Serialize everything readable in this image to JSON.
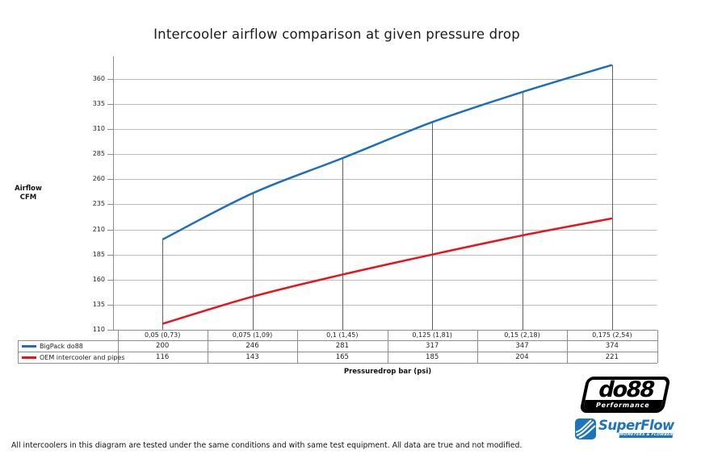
{
  "title": "Intercooler airflow comparison at given pressure drop",
  "chart_data": {
    "type": "line",
    "title": "Intercooler airflow comparison at given pressure drop",
    "xlabel": "Pressuredrop bar (psi)",
    "ylabel": "Airflow CFM",
    "ylabel_lines": [
      "Airflow",
      "CFM"
    ],
    "categories": [
      "0,05 (0,73)",
      "0,075 (1,09)",
      "0,1 (1,45)",
      "0,125 (1,81)",
      "0,15 (2,18)",
      "0,175 (2,54)"
    ],
    "series": [
      {
        "name": "BigPack do88",
        "color": "#1b6fbe",
        "values": [
          200,
          246,
          281,
          317,
          347,
          374
        ]
      },
      {
        "name": "OEM intercooler and pipes",
        "color": "#e8141b",
        "values": [
          116,
          143,
          165,
          185,
          204,
          221
        ]
      }
    ],
    "yticks": [
      110,
      135,
      160,
      185,
      210,
      235,
      260,
      285,
      310,
      335,
      360
    ],
    "ylim": [
      110,
      382.5
    ],
    "grid": true,
    "drop_lines_from_series": "BigPack do88",
    "legend_position": "data-table-left"
  },
  "footer": {
    "disclaimer": "All intercoolers in this diagram are tested under the same conditions and with same test equipment. All data are true and not modified."
  },
  "logos": {
    "do88": {
      "name": "do88",
      "tagline": "Performance"
    },
    "superflow": {
      "name": "SuperFlow",
      "tagline": "DYNAMOMETERS & FLOWBENCHES"
    }
  },
  "colors": {
    "grid": "#bdbdbd",
    "axis": "#8d8d8d",
    "drop_line": "#5f5f5f",
    "table_border": "#8d8d8d",
    "superflow_blue": "#1b75bc"
  }
}
